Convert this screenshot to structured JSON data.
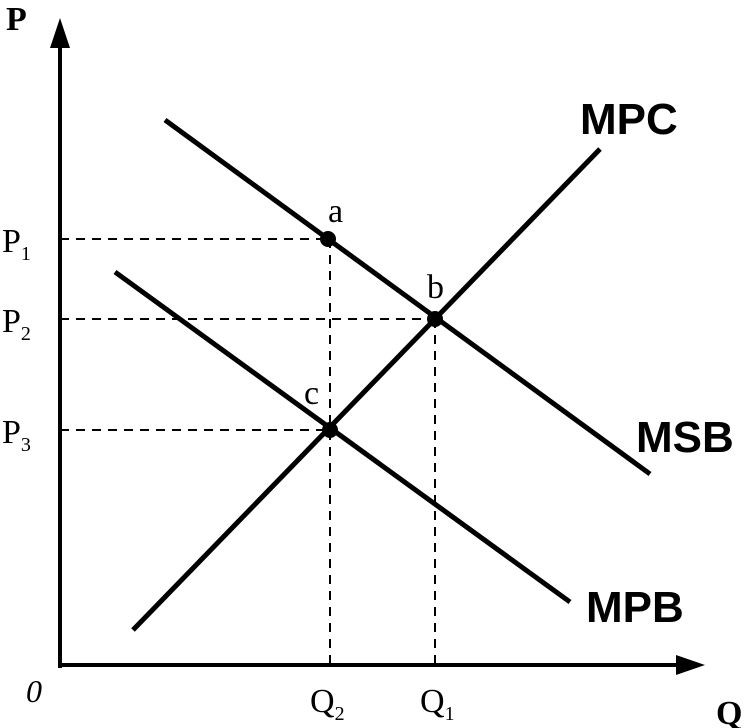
{
  "axes": {
    "y_title": "P",
    "x_title": "Q",
    "origin": "0"
  },
  "price_ticks": [
    {
      "main": "P",
      "sub": "1"
    },
    {
      "main": "P",
      "sub": "2"
    },
    {
      "main": "P",
      "sub": "3"
    }
  ],
  "quantity_ticks": [
    {
      "main": "Q",
      "sub": "2"
    },
    {
      "main": "Q",
      "sub": "1"
    }
  ],
  "curves": {
    "mpc": "MPC",
    "msb": "MSB",
    "mpb": "MPB"
  },
  "points": {
    "a": "a",
    "b": "b",
    "c": "c"
  },
  "colors": {
    "ink": "#000000",
    "background": "#ffffff"
  }
}
